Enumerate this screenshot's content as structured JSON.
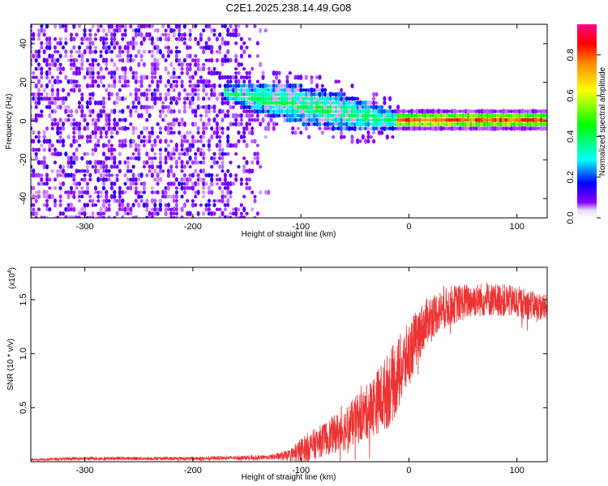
{
  "title": "C2E1.2025.238.14.49.G08",
  "chart_data": [
    {
      "type": "heatmap",
      "name": "spectrogram",
      "xlabel": "Height of straight line (km)",
      "ylabel": "Frequency (Hz)",
      "xlim": [
        -350,
        128
      ],
      "ylim": [
        -50,
        50
      ],
      "x_ticks": [
        -300,
        -200,
        -100,
        0,
        100
      ],
      "x_tick_labels": [
        "-300",
        "-200",
        "-100",
        "0",
        "100"
      ],
      "y_ticks": [
        -40,
        -20,
        0,
        20,
        40
      ],
      "y_tick_labels": [
        "-40",
        "-20",
        "0",
        "20",
        "40"
      ],
      "colorbar": {
        "label": "Normalized spectral amplitude",
        "range": [
          0,
          0.95
        ],
        "ticks": [
          0.0,
          0.2,
          0.4,
          0.6,
          0.8
        ],
        "tick_labels": [
          "0.0",
          "0.2",
          "0.4",
          "0.6",
          "0.8"
        ],
        "colors": [
          "#ffffff",
          "#8800ff",
          "#0000ff",
          "#00ffff",
          "#00ff00",
          "#ffff00",
          "#ff8800",
          "#ff0000",
          "#ff0088"
        ]
      },
      "regions": [
        {
          "x": [
            -350,
            -170
          ],
          "freq": [
            -50,
            50
          ],
          "amplitude": [
            0.0,
            0.12
          ],
          "description": "broadband noise"
        },
        {
          "x": [
            -170,
            -130
          ],
          "freq": [
            -50,
            50
          ],
          "amplitude": [
            0.0,
            0.08
          ],
          "description": "fading noise"
        },
        {
          "x": [
            -170,
            -10
          ],
          "freq_center_start": 15,
          "freq_center_end": 0,
          "amplitude": [
            0.05,
            0.35
          ],
          "description": "descending signal band"
        },
        {
          "x": [
            -10,
            128
          ],
          "freq": [
            -2,
            3
          ],
          "amplitude": [
            0.3,
            0.9
          ],
          "description": "stable signal near 0 Hz"
        }
      ]
    },
    {
      "type": "line",
      "name": "snr",
      "xlabel": "Height of straight line (km)",
      "ylabel": "SNR (10 * v/v)",
      "y_scale_label": "(x10",
      "y_scale_exponent": "4",
      "y_scale_suffix": ")",
      "xlim": [
        -350,
        128
      ],
      "ylim": [
        0,
        1.8
      ],
      "x_ticks": [
        -300,
        -200,
        -100,
        0,
        100
      ],
      "x_tick_labels": [
        "-300",
        "-200",
        "-100",
        "0",
        "100"
      ],
      "y_ticks": [
        0.5,
        1.0,
        1.5
      ],
      "y_tick_labels": [
        "0.5",
        "1.0",
        "1.5"
      ],
      "series": [
        {
          "name": "SNR",
          "color": "#ee3333",
          "envelope": {
            "x": [
              -350,
              -300,
              -200,
              -130,
              -110,
              -100,
              -80,
              -60,
              -40,
              -20,
              -10,
              0,
              10,
              20,
              40,
              60,
              80,
              100,
              128
            ],
            "mean": [
              0.02,
              0.03,
              0.03,
              0.04,
              0.06,
              0.1,
              0.2,
              0.3,
              0.45,
              0.65,
              0.8,
              1.0,
              1.2,
              1.35,
              1.45,
              1.5,
              1.5,
              1.48,
              1.42
            ],
            "spread": [
              0.01,
              0.015,
              0.015,
              0.02,
              0.05,
              0.12,
              0.15,
              0.2,
              0.25,
              0.35,
              0.35,
              0.3,
              0.25,
              0.2,
              0.18,
              0.16,
              0.15,
              0.15,
              0.12
            ]
          }
        }
      ]
    }
  ]
}
